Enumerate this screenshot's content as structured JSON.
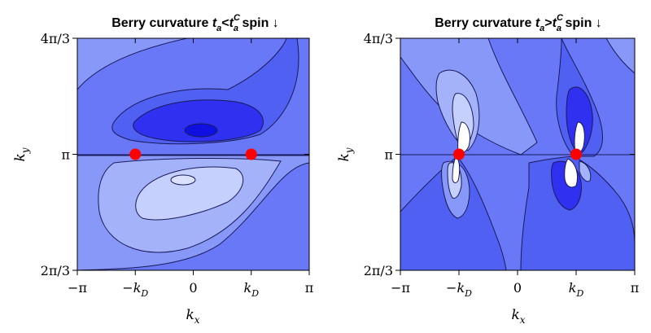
{
  "chart_data": [
    {
      "type": "contour",
      "title": {
        "prefix": "Berry curvature ",
        "t": "t",
        "a": "a",
        "rel": "<",
        "t2": "t",
        "sup": "C",
        "sub2": "a",
        "suffix": " spin ↓"
      },
      "xlabel": {
        "base": "k",
        "sub": "x"
      },
      "ylabel": {
        "base": "k",
        "sub": "y"
      },
      "xticks": [
        {
          "value": "-pi",
          "label": "−π"
        },
        {
          "value": "-kD",
          "label": "−k",
          "sub": "D"
        },
        {
          "value": "0",
          "label": "0"
        },
        {
          "value": "kD",
          "label": "k",
          "sub": "D"
        },
        {
          "value": "pi",
          "label": "π"
        }
      ],
      "yticks": [
        {
          "value": "4pi/3",
          "label": "4π/3"
        },
        {
          "value": "pi",
          "label": "π"
        },
        {
          "value": "2pi/3",
          "label": "2π/3"
        }
      ],
      "dirac_points": [
        {
          "x": "-kD",
          "y": "pi"
        },
        {
          "x": "kD",
          "y": "pi"
        }
      ],
      "marker_color": "#ff0000"
    },
    {
      "type": "contour",
      "title": {
        "prefix": "Berry curvature ",
        "t": "t",
        "a": "a",
        "rel": ">",
        "t2": "t",
        "sup": "C",
        "sub2": "a",
        "suffix": " spin ↓"
      },
      "xlabel": {
        "base": "k",
        "sub": "x"
      },
      "ylabel": {
        "base": "k",
        "sub": "y"
      },
      "xticks": [
        {
          "value": "-pi",
          "label": "−π"
        },
        {
          "value": "-kD",
          "label": "−k",
          "sub": "D"
        },
        {
          "value": "0",
          "label": "0"
        },
        {
          "value": "kD",
          "label": "k",
          "sub": "D"
        },
        {
          "value": "pi",
          "label": "π"
        }
      ],
      "yticks": [
        {
          "value": "4pi/3",
          "label": "4π/3"
        },
        {
          "value": "pi",
          "label": "π"
        },
        {
          "value": "2pi/3",
          "label": "2π/3"
        }
      ],
      "dirac_points": [
        {
          "x": "-kD",
          "y": "pi"
        },
        {
          "x": "kD",
          "y": "pi"
        }
      ],
      "marker_color": "#ff0000"
    }
  ],
  "palette": {
    "deep": "#1010e0",
    "dark": "#3030f0",
    "mid": "#5060f2",
    "base": "#6878f6",
    "light": "#8898f8",
    "pale": "#a4b2fa",
    "paler": "#c6d0fc",
    "white": "#ffffff",
    "line": "#1a1a5a"
  }
}
